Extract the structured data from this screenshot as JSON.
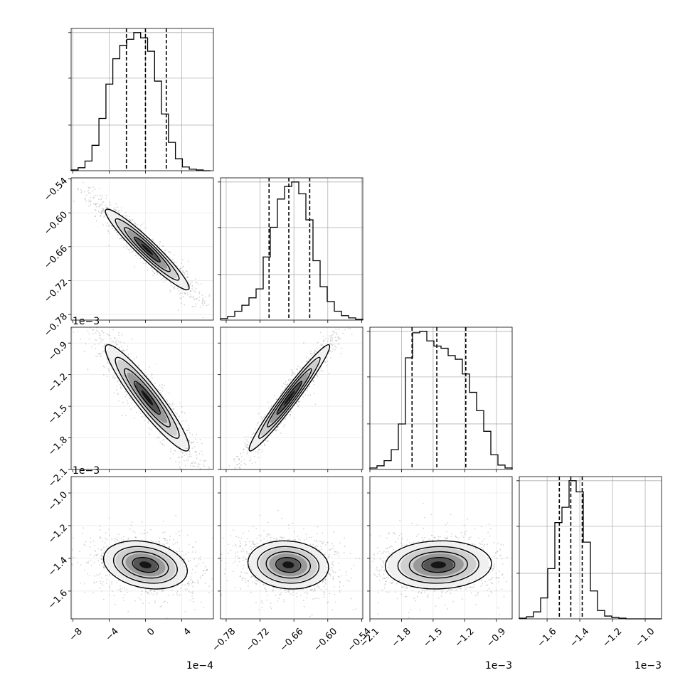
{
  "chart_data": {
    "type": "corner",
    "grid": true,
    "quantiles_shown": true,
    "parameters": [
      {
        "ticks": [
          -8,
          -4,
          0,
          4
        ],
        "tick_labels": [
          "−8",
          "−4",
          "0",
          "4"
        ],
        "offset_label": "1e−4",
        "range": [
          -8.2,
          7.5
        ]
      },
      {
        "ticks": [
          -0.78,
          -0.72,
          -0.66,
          -0.6,
          -0.54
        ],
        "tick_labels": [
          "−0.78",
          "−0.72",
          "−0.66",
          "−0.60",
          "−0.54"
        ],
        "offset_label": "1e−3",
        "range": [
          -0.79,
          -0.538
        ]
      },
      {
        "ticks": [
          -2.1,
          -1.8,
          -1.5,
          -1.2,
          -0.9
        ],
        "tick_labels": [
          "−2.1",
          "−1.8",
          "−1.5",
          "−1.2",
          "−0.9"
        ],
        "offset_label": "1e−3",
        "range": [
          -2.1,
          -0.75
        ]
      },
      {
        "ticks": [
          -1.6,
          -1.4,
          -1.2,
          -1.0
        ],
        "tick_labels": [
          "−1.6",
          "−1.4",
          "−1.2",
          "−1.0"
        ],
        "offset_label": "1e−3",
        "range": [
          -1.77,
          -0.9
        ]
      }
    ],
    "diagonal_histograms": [
      {
        "param": 0,
        "quantiles": [
          -2.1,
          0,
          2.3
        ],
        "bins": [
          -8.2,
          -7.43,
          -6.67,
          -5.9,
          -5.13,
          -4.36,
          -3.6,
          -2.83,
          -2.06,
          -1.29,
          -0.53,
          0.24,
          1.01,
          1.77,
          2.54,
          3.31,
          4.08,
          4.84,
          5.61,
          6.38,
          7.15
        ],
        "counts": [
          1,
          4,
          13,
          34,
          70,
          116,
          150,
          168,
          176,
          185,
          178,
          160,
          120,
          76,
          38,
          16,
          5,
          2,
          1,
          0
        ]
      },
      {
        "param": 1,
        "quantiles": [
          -0.704,
          -0.669,
          -0.632
        ],
        "bins": [
          -0.79,
          -0.7774,
          -0.7648,
          -0.7522,
          -0.7396,
          -0.727,
          -0.7144,
          -0.7018,
          -0.6892,
          -0.6766,
          -0.664,
          -0.6514,
          -0.6388,
          -0.6262,
          -0.6136,
          -0.601,
          -0.5884,
          -0.5758,
          -0.5632,
          -0.5506,
          -0.538
        ],
        "counts": [
          2,
          5,
          12,
          20,
          30,
          42,
          85,
          125,
          163,
          180,
          186,
          170,
          135,
          80,
          45,
          25,
          12,
          6,
          3,
          1
        ]
      },
      {
        "param": 2,
        "quantiles": [
          -1.7,
          -1.465,
          -1.19
        ],
        "bins": [
          -2.1,
          -2.0325,
          -1.965,
          -1.8975,
          -1.83,
          -1.7625,
          -1.695,
          -1.6275,
          -1.56,
          -1.4925,
          -1.425,
          -1.3575,
          -1.29,
          -1.2225,
          -1.155,
          -1.0875,
          -1.02,
          -0.9525,
          -0.885,
          -0.8175,
          -0.75
        ],
        "counts": [
          2,
          5,
          12,
          27,
          62,
          152,
          186,
          188,
          175,
          168,
          165,
          155,
          150,
          130,
          105,
          80,
          52,
          20,
          6,
          2
        ]
      },
      {
        "param": 3,
        "quantiles": [
          -1.525,
          -1.455,
          -1.385
        ],
        "bins": [
          -1.77,
          -1.7265,
          -1.683,
          -1.6395,
          -1.596,
          -1.5525,
          -1.509,
          -1.4655,
          -1.422,
          -1.3785,
          -1.335,
          -1.2915,
          -1.248,
          -1.2045,
          -1.161,
          -1.1175,
          -1.074,
          -1.0305,
          -0.987,
          -0.9435,
          -0.9
        ],
        "counts": [
          1,
          3,
          10,
          30,
          72,
          138,
          160,
          198,
          182,
          110,
          40,
          12,
          4,
          2,
          1,
          0,
          0,
          0,
          0,
          0
        ]
      }
    ],
    "pair_panels": [
      {
        "x_param": 0,
        "y_param": 1,
        "center": [
          0.2,
          -0.665
        ],
        "sd": [
          2.2,
          0.034
        ],
        "rho": -0.95
      },
      {
        "x_param": 0,
        "y_param": 2,
        "center": [
          0.2,
          -1.42
        ],
        "sd": [
          2.2,
          0.24
        ],
        "rho": -0.93
      },
      {
        "x_param": 1,
        "y_param": 2,
        "center": [
          -0.668,
          -1.42
        ],
        "sd": [
          0.034,
          0.24
        ],
        "rho": 0.97
      },
      {
        "x_param": 0,
        "y_param": 3,
        "center": [
          0.0,
          -1.44
        ],
        "sd": [
          2.2,
          0.07
        ],
        "rho": -0.25
      },
      {
        "x_param": 1,
        "y_param": 3,
        "center": [
          -0.67,
          -1.44
        ],
        "sd": [
          0.034,
          0.07
        ],
        "rho": -0.1
      },
      {
        "x_param": 2,
        "y_param": 3,
        "center": [
          -1.45,
          -1.44
        ],
        "sd": [
          0.24,
          0.07
        ],
        "rho": 0.05
      }
    ]
  }
}
